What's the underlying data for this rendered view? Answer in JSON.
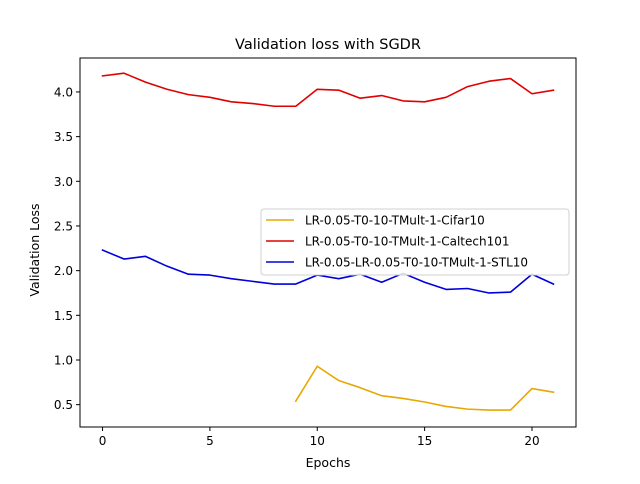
{
  "chart_data": {
    "type": "line",
    "title": "Validation loss with SGDR",
    "xlabel": "Epochs",
    "ylabel": "Validation Loss",
    "xlim": [
      -1.05,
      22.05
    ],
    "ylim": [
      0.25,
      4.38
    ],
    "xticks": [
      0,
      5,
      10,
      15,
      20
    ],
    "xtick_labels": [
      "0",
      "5",
      "10",
      "15",
      "20"
    ],
    "yticks": [
      0.5,
      1.0,
      1.5,
      2.0,
      2.5,
      3.0,
      3.5,
      4.0
    ],
    "ytick_labels": [
      "0.5",
      "1.0",
      "1.5",
      "2.0",
      "2.5",
      "3.0",
      "3.5",
      "4.0"
    ],
    "grid": false,
    "legend_position": "center-right",
    "series": [
      {
        "name": "LR-0.05-T0-10-TMult-1-Cifar10",
        "color": "#e8a800",
        "x": [
          9,
          10,
          11,
          12,
          13,
          14,
          15,
          16,
          17,
          18,
          19,
          20,
          21
        ],
        "y": [
          0.54,
          0.93,
          0.77,
          0.69,
          0.6,
          0.57,
          0.53,
          0.48,
          0.45,
          0.44,
          0.44,
          0.68,
          0.64
        ]
      },
      {
        "name": "LR-0.05-T0-10-TMult-1-Caltech101",
        "color": "#e00000",
        "x": [
          0,
          1,
          2,
          3,
          4,
          5,
          6,
          7,
          8,
          9,
          10,
          11,
          12,
          13,
          14,
          15,
          16,
          17,
          18,
          19,
          20,
          21
        ],
        "y": [
          4.18,
          4.21,
          4.11,
          4.03,
          3.97,
          3.94,
          3.89,
          3.87,
          3.84,
          3.84,
          4.03,
          4.02,
          3.93,
          3.96,
          3.9,
          3.89,
          3.94,
          4.06,
          4.12,
          4.15,
          3.98,
          4.02
        ]
      },
      {
        "name": "LR-0.05-LR-0.05-T0-10-TMult-1-STL10",
        "color": "#0000dd",
        "x": [
          0,
          1,
          2,
          3,
          4,
          5,
          6,
          7,
          8,
          9,
          10,
          11,
          12,
          13,
          14,
          15,
          16,
          17,
          18,
          19,
          20,
          21
        ],
        "y": [
          2.23,
          2.13,
          2.16,
          2.05,
          1.96,
          1.95,
          1.91,
          1.88,
          1.85,
          1.85,
          1.95,
          1.91,
          1.96,
          1.87,
          1.97,
          1.87,
          1.79,
          1.8,
          1.75,
          1.76,
          1.96,
          1.85
        ]
      }
    ]
  }
}
